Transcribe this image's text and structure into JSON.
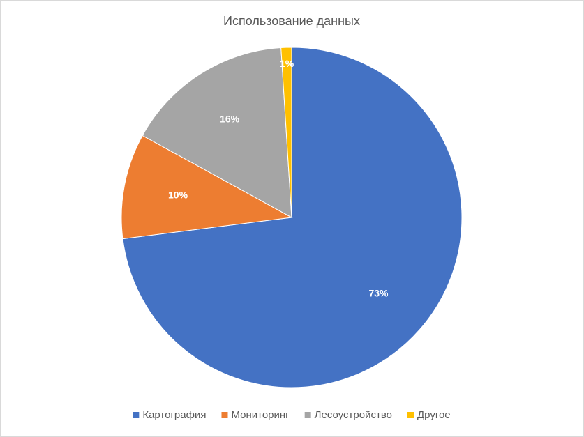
{
  "chart_data": {
    "type": "pie",
    "title": "Использование данных",
    "categories": [
      "Картография",
      "Мониторинг",
      "Лесоустройство",
      "Другое"
    ],
    "values": [
      73,
      10,
      16,
      1
    ],
    "value_labels": [
      "73%",
      "10%",
      "16%",
      "1%"
    ],
    "colors": [
      "#4472c4",
      "#ed7d31",
      "#a5a5a5",
      "#ffc000"
    ],
    "legend": "bottom"
  }
}
